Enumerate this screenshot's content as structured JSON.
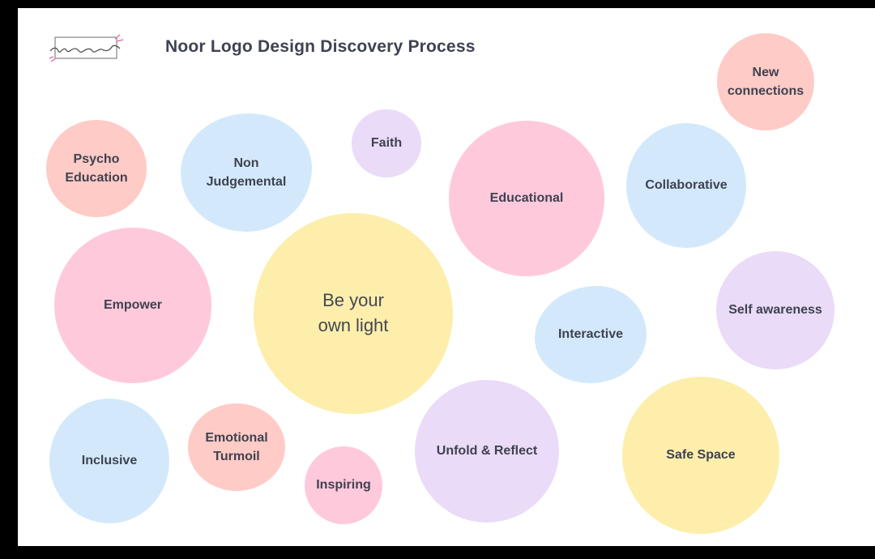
{
  "header": {
    "title": "Noor Logo Design Discovery Process",
    "logo_icon": "noor-logo-icon"
  },
  "colors": {
    "pink": "#ffc9dc",
    "salmon": "#ffcbc6",
    "blue": "#d3e9fb",
    "lilac": "#eadbf8",
    "yellow": "#fdeeab",
    "text": "#3f4250"
  },
  "bubbles": {
    "new_connections": "New\nconnections",
    "psycho_education": "Psycho\nEducation",
    "non_judgemental": "Non\nJudgemental",
    "faith": "Faith",
    "educational": "Educational",
    "collaborative": "Collaborative",
    "empower": "Empower",
    "be_your_own_light": "Be your\nown light",
    "interactive": "Interactive",
    "self_awareness": "Self awareness",
    "inclusive": "Inclusive",
    "emotional_turmoil": "Emotional\nTurmoil",
    "inspiring": "Inspiring",
    "unfold_reflect": "Unfold & Reflect",
    "safe_space": "Safe Space"
  }
}
